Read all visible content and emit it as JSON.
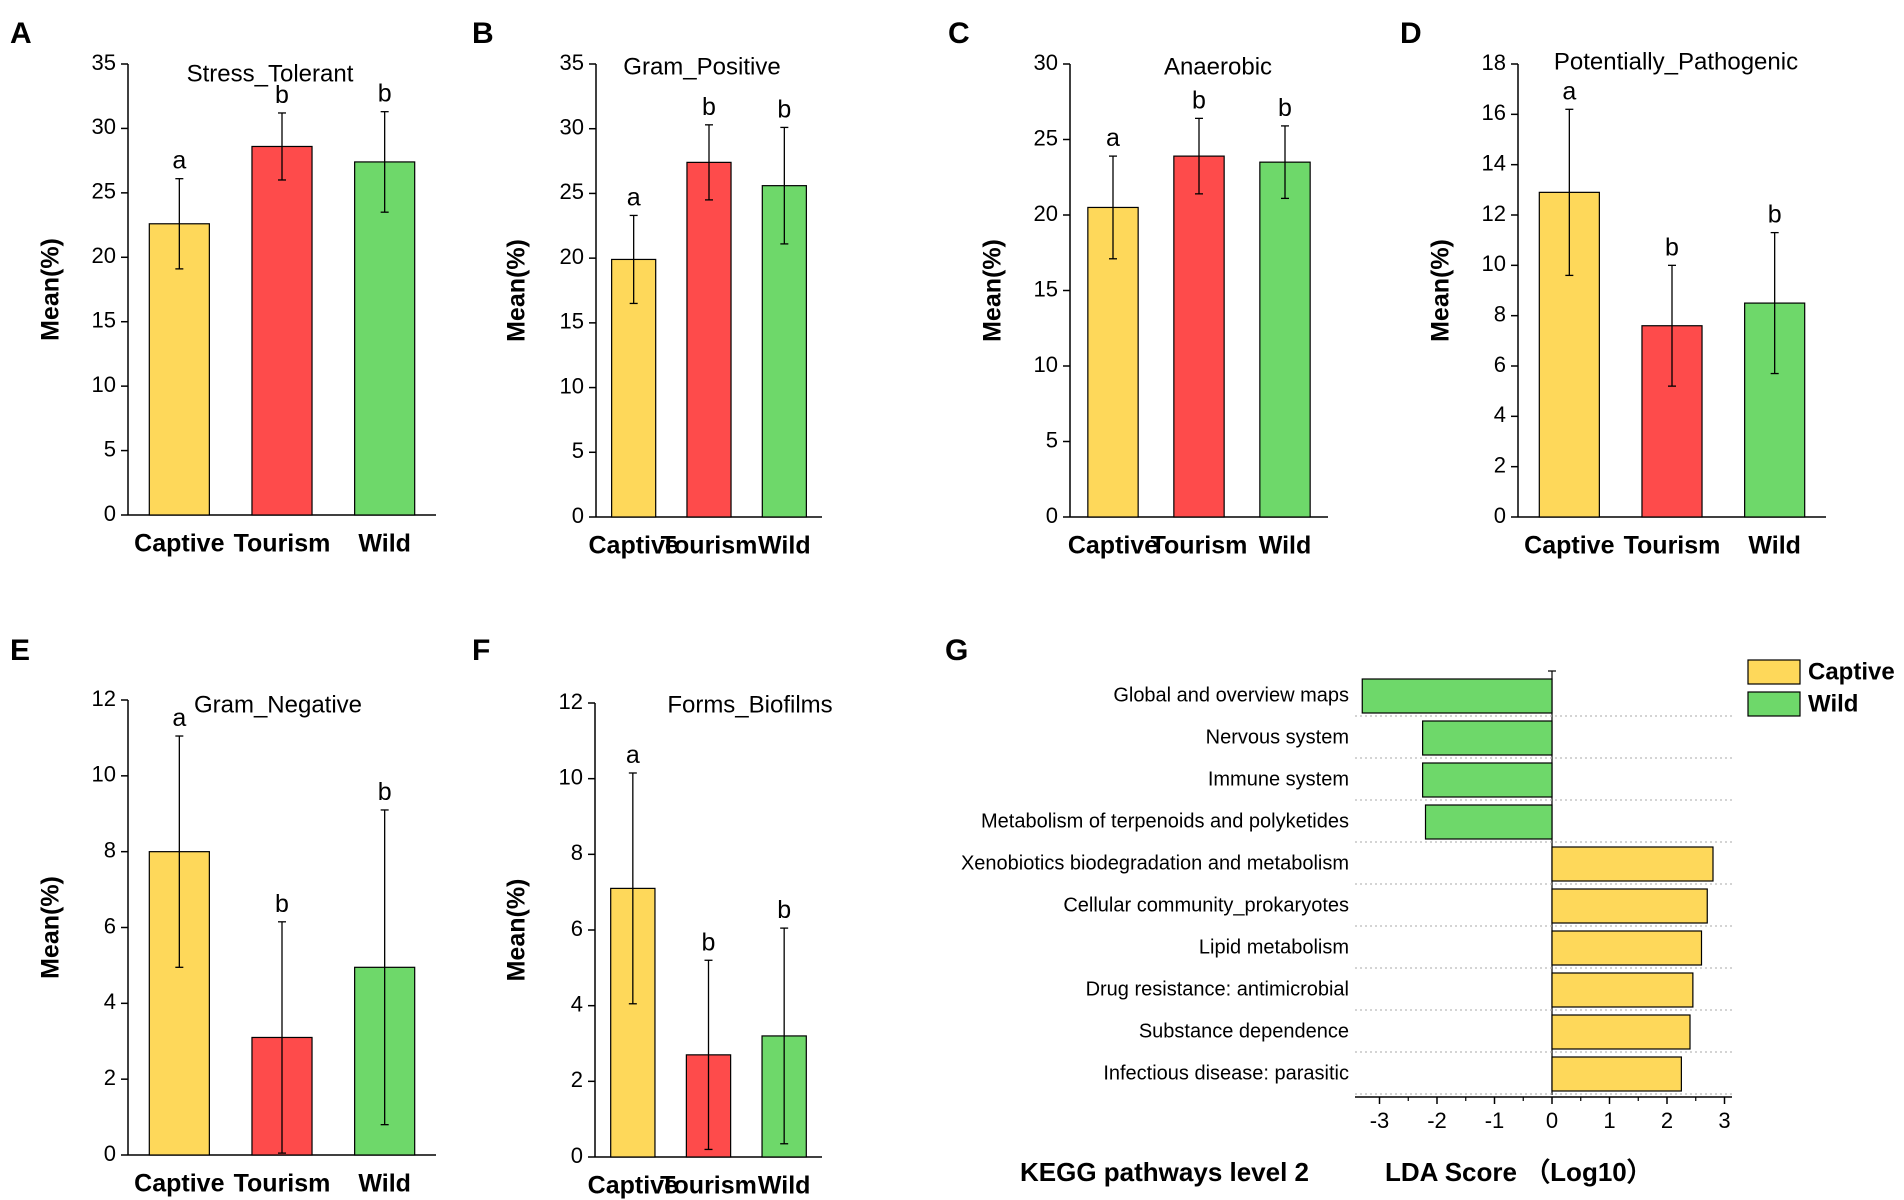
{
  "colors": {
    "captive": "#FED85A",
    "tourism": "#FE4B4B",
    "wild": "#6ED86A"
  },
  "chart_data": [
    {
      "type": "bar",
      "letter": "A",
      "title": "Stress_Tolerant",
      "ylabel": "Mean(%)",
      "ylim": [
        0,
        35
      ],
      "yticks": [
        0,
        5,
        10,
        15,
        20,
        25,
        30,
        35
      ],
      "categories": [
        "Captive",
        "Tourism",
        "Wild"
      ],
      "values": [
        22.6,
        28.6,
        27.4
      ],
      "errors": [
        3.5,
        2.6,
        3.9
      ],
      "labels": [
        "a",
        "b",
        "b"
      ]
    },
    {
      "type": "bar",
      "letter": "B",
      "title": "Gram_Positive",
      "ylabel": "Mean(%)",
      "ylim": [
        0,
        35
      ],
      "yticks": [
        0,
        5,
        10,
        15,
        20,
        25,
        30,
        35
      ],
      "categories": [
        "Captive",
        "Tourism",
        "Wild"
      ],
      "values": [
        19.9,
        27.4,
        25.6
      ],
      "errors": [
        3.4,
        2.9,
        4.5
      ],
      "labels": [
        "a",
        "b",
        "b"
      ]
    },
    {
      "type": "bar",
      "letter": "C",
      "title": "Anaerobic",
      "ylabel": "Mean(%)",
      "ylim": [
        0,
        30
      ],
      "yticks": [
        0,
        5,
        10,
        15,
        20,
        25,
        30
      ],
      "categories": [
        "Captive",
        "Tourism",
        "Wild"
      ],
      "values": [
        20.5,
        23.9,
        23.5
      ],
      "errors": [
        3.4,
        2.5,
        2.4
      ],
      "labels": [
        "a",
        "b",
        "b"
      ]
    },
    {
      "type": "bar",
      "letter": "D",
      "title": "Potentially_Pathogenic",
      "ylabel": "Mean(%)",
      "ylim": [
        0,
        18
      ],
      "yticks": [
        0,
        2,
        4,
        6,
        8,
        10,
        12,
        14,
        16,
        18
      ],
      "categories": [
        "Captive",
        "Tourism",
        "Wild"
      ],
      "values": [
        12.9,
        7.6,
        8.5
      ],
      "errors": [
        3.3,
        2.4,
        2.8
      ],
      "labels": [
        "a",
        "b",
        "b"
      ]
    },
    {
      "type": "bar",
      "letter": "E",
      "title": "Gram_Negative",
      "ylabel": "Mean(%)",
      "ylim": [
        0,
        12
      ],
      "yticks": [
        0,
        2,
        4,
        6,
        8,
        10,
        12
      ],
      "categories": [
        "Captive",
        "Tourism",
        "Wild"
      ],
      "values": [
        8.0,
        3.1,
        4.95
      ],
      "errors": [
        3.05,
        3.05,
        4.15
      ],
      "labels": [
        "a",
        "b",
        "b"
      ]
    },
    {
      "type": "bar",
      "letter": "F",
      "title": "Forms_Biofilms",
      "ylabel": "Mean(%)",
      "ylim": [
        0,
        12
      ],
      "yticks": [
        0,
        2,
        4,
        6,
        8,
        10,
        12
      ],
      "categories": [
        "Captive",
        "Tourism",
        "Wild"
      ],
      "values": [
        7.1,
        2.7,
        3.2
      ],
      "errors": [
        3.05,
        2.5,
        2.85
      ],
      "labels": [
        "a",
        "b",
        "b"
      ]
    },
    {
      "type": "hbar",
      "letter": "G",
      "title": "",
      "xlabel": "LDA Score （Log10）",
      "ylabel": "KEGG pathways level 2",
      "xlim": [
        -3.4,
        3.0
      ],
      "xticks": [
        -3,
        -2,
        -1,
        0,
        1,
        2,
        3
      ],
      "legend": [
        {
          "name": "Captive",
          "color": "#FED85A"
        },
        {
          "name": "Wild",
          "color": "#6ED86A"
        }
      ],
      "pathways": [
        {
          "name": "Global and overview maps",
          "value": -3.3,
          "group": "Wild"
        },
        {
          "name": "Nervous system",
          "value": -2.25,
          "group": "Wild"
        },
        {
          "name": "Immune system",
          "value": -2.25,
          "group": "Wild"
        },
        {
          "name": "Metabolism of terpenoids and polyketides",
          "value": -2.2,
          "group": "Wild"
        },
        {
          "name": "Xenobiotics biodegradation and metabolism",
          "value": 2.8,
          "group": "Captive"
        },
        {
          "name": "Cellular community_prokaryotes",
          "value": 2.7,
          "group": "Captive"
        },
        {
          "name": "Lipid metabolism",
          "value": 2.6,
          "group": "Captive"
        },
        {
          "name": "Drug resistance: antimicrobial",
          "value": 2.45,
          "group": "Captive"
        },
        {
          "name": "Substance dependence",
          "value": 2.4,
          "group": "Captive"
        },
        {
          "name": "Infectious disease: parasitic",
          "value": 2.25,
          "group": "Captive"
        }
      ]
    }
  ]
}
